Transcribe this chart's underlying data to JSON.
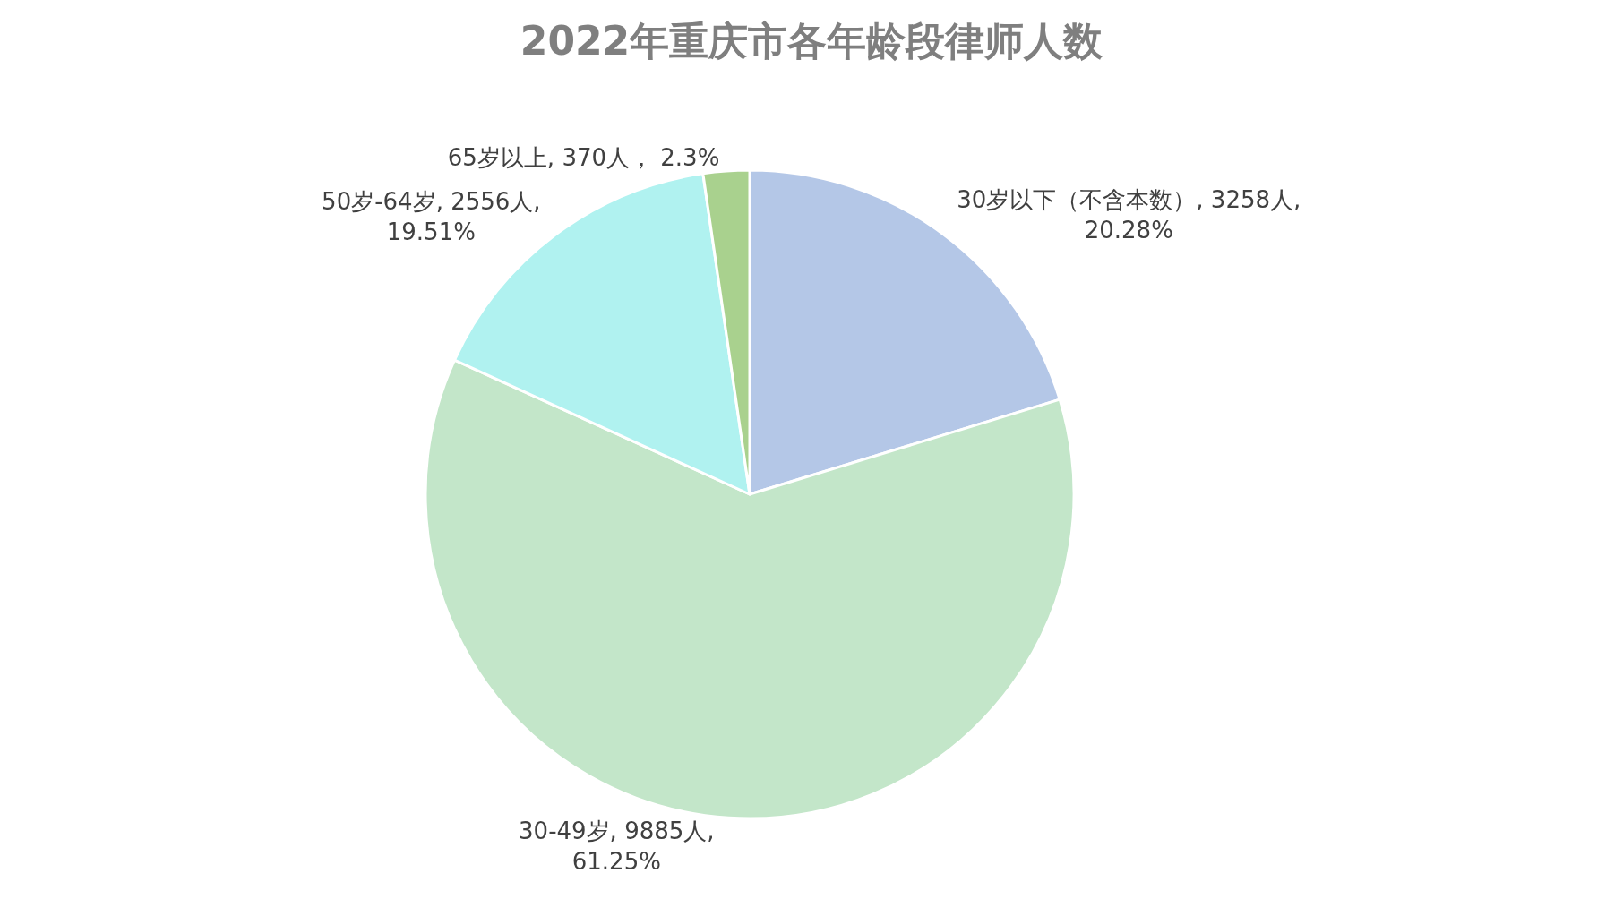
{
  "chart_data": {
    "type": "pie",
    "title": "2022年重庆市各年龄段律师人数",
    "categories": [
      "30岁以下（不含本数）",
      "30-49岁",
      "50岁-64岁",
      "65岁以上"
    ],
    "values": [
      3258,
      9885,
      2556,
      370
    ],
    "value_labels": [
      "3258人,\n20.28%",
      "9885人,\n61.25%",
      "2556人,\n19.51%",
      "370人， 2.3%"
    ],
    "colors": [
      "#b4c7e7",
      "#c3e6c9",
      "#b0f2f0",
      "#a9d18e"
    ],
    "legend": false
  }
}
